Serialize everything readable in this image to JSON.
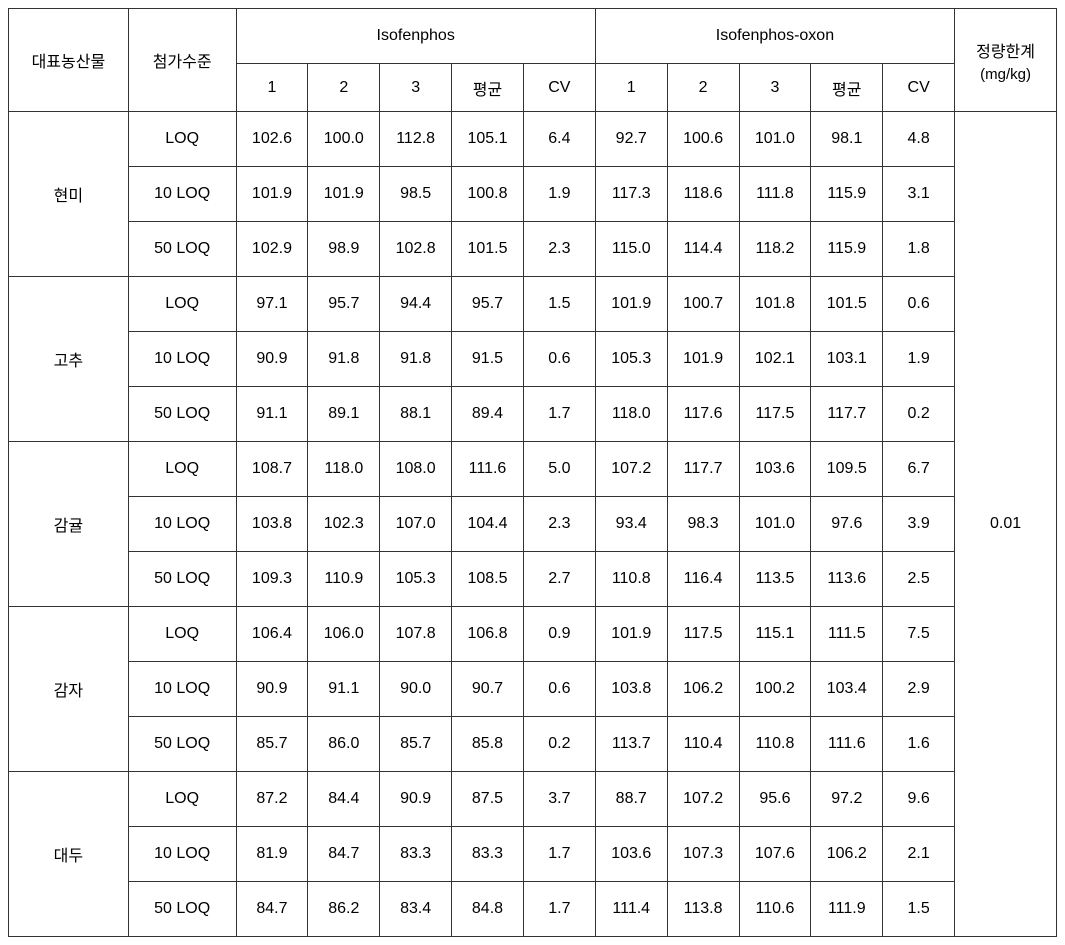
{
  "headers": {
    "product": "대표농산물",
    "level": "첨가수준",
    "compound_a": "Isofenphos",
    "compound_b": "Isofenphos-oxon",
    "loq": "정량한계",
    "loq_unit": "(mg/kg)",
    "sub": [
      "1",
      "2",
      "3",
      "평균",
      "CV"
    ]
  },
  "loq_value": "0.01",
  "products": [
    "현미",
    "고추",
    "감귤",
    "감자",
    "대두"
  ],
  "levels": [
    "LOQ",
    "10 LOQ",
    "50 LOQ"
  ],
  "data": [
    [
      [
        "102.6",
        "100.0",
        "112.8",
        "105.1",
        "6.4",
        "92.7",
        "100.6",
        "101.0",
        "98.1",
        "4.8"
      ],
      [
        "101.9",
        "101.9",
        "98.5",
        "100.8",
        "1.9",
        "117.3",
        "118.6",
        "111.8",
        "115.9",
        "3.1"
      ],
      [
        "102.9",
        "98.9",
        "102.8",
        "101.5",
        "2.3",
        "115.0",
        "114.4",
        "118.2",
        "115.9",
        "1.8"
      ]
    ],
    [
      [
        "97.1",
        "95.7",
        "94.4",
        "95.7",
        "1.5",
        "101.9",
        "100.7",
        "101.8",
        "101.5",
        "0.6"
      ],
      [
        "90.9",
        "91.8",
        "91.8",
        "91.5",
        "0.6",
        "105.3",
        "101.9",
        "102.1",
        "103.1",
        "1.9"
      ],
      [
        "91.1",
        "89.1",
        "88.1",
        "89.4",
        "1.7",
        "118.0",
        "117.6",
        "117.5",
        "117.7",
        "0.2"
      ]
    ],
    [
      [
        "108.7",
        "118.0",
        "108.0",
        "111.6",
        "5.0",
        "107.2",
        "117.7",
        "103.6",
        "109.5",
        "6.7"
      ],
      [
        "103.8",
        "102.3",
        "107.0",
        "104.4",
        "2.3",
        "93.4",
        "98.3",
        "101.0",
        "97.6",
        "3.9"
      ],
      [
        "109.3",
        "110.9",
        "105.3",
        "108.5",
        "2.7",
        "110.8",
        "116.4",
        "113.5",
        "113.6",
        "2.5"
      ]
    ],
    [
      [
        "106.4",
        "106.0",
        "107.8",
        "106.8",
        "0.9",
        "101.9",
        "117.5",
        "115.1",
        "111.5",
        "7.5"
      ],
      [
        "90.9",
        "91.1",
        "90.0",
        "90.7",
        "0.6",
        "103.8",
        "106.2",
        "100.2",
        "103.4",
        "2.9"
      ],
      [
        "85.7",
        "86.0",
        "85.7",
        "85.8",
        "0.2",
        "113.7",
        "110.4",
        "110.8",
        "111.6",
        "1.6"
      ]
    ],
    [
      [
        "87.2",
        "84.4",
        "90.9",
        "87.5",
        "3.7",
        "88.7",
        "107.2",
        "95.6",
        "97.2",
        "9.6"
      ],
      [
        "81.9",
        "84.7",
        "83.3",
        "83.3",
        "1.7",
        "103.6",
        "107.3",
        "107.6",
        "106.2",
        "2.1"
      ],
      [
        "84.7",
        "86.2",
        "83.4",
        "84.8",
        "1.7",
        "111.4",
        "113.8",
        "110.6",
        "111.9",
        "1.5"
      ]
    ]
  ]
}
